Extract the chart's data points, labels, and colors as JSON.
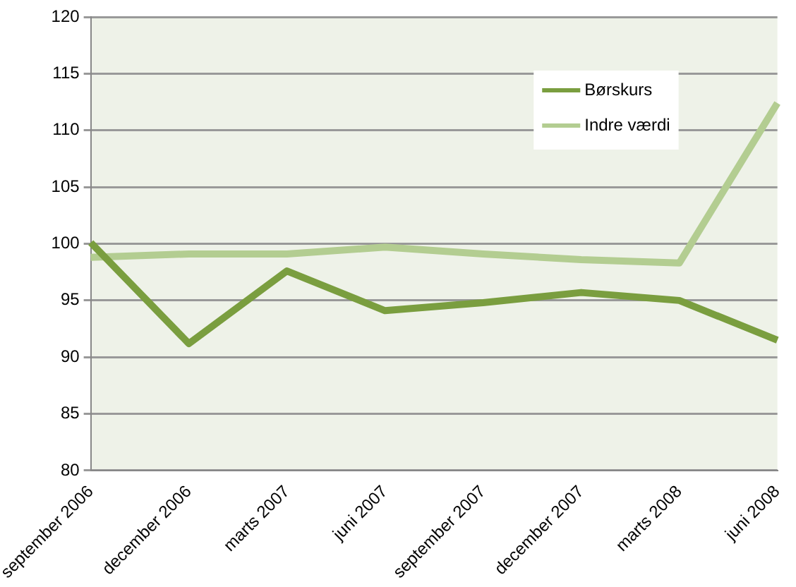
{
  "chart_data": {
    "type": "line",
    "categories": [
      "september 2006",
      "december 2006",
      "marts 2007",
      "juni 2007",
      "september 2007",
      "december 2007",
      "marts 2008",
      "juni 2008"
    ],
    "series": [
      {
        "name": "Børskurs",
        "color": "#7a9e3f",
        "values": [
          100.1,
          91.2,
          97.6,
          94.1,
          94.8,
          95.7,
          95.0,
          91.5
        ]
      },
      {
        "name": "Indre værdi",
        "color": "#b3cd91",
        "values": [
          98.8,
          99.1,
          99.1,
          99.7,
          99.1,
          98.6,
          98.3,
          112.4
        ]
      }
    ],
    "ylim": [
      80,
      120
    ],
    "yticks": [
      80,
      85,
      90,
      95,
      100,
      105,
      110,
      115,
      120
    ],
    "grid": "y",
    "legend": "top right",
    "marker": "none",
    "line_style": "solid"
  }
}
